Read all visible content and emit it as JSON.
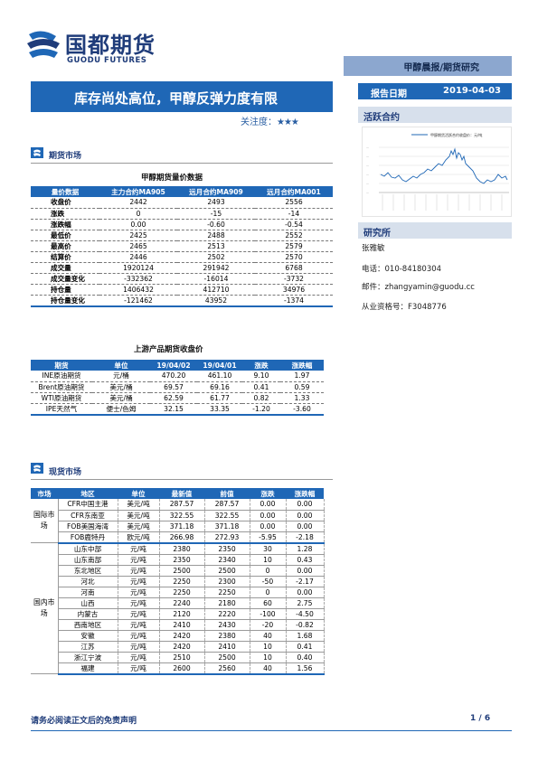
{
  "header": {
    "logo_cn": "国都期货",
    "logo_en": "GUODU FUTURES",
    "brand_band": "甲醇晨报/期货研究",
    "title": "库存尚处高位，甲醇反弹力度有限",
    "attention_label": "关注度：",
    "attention_stars": "★★★",
    "date_label": "报告日期",
    "date_value": "2019-04-03"
  },
  "sidebar": {
    "active_contract_head": "活跃合约",
    "chart_legend": "甲醇期货活跃合约收盘价：元/吨",
    "research_head": "研究所",
    "analyst": "张雅敏",
    "phone": "电话：010-84180304",
    "email": "邮件：zhangyamin@guodu.cc",
    "license": "从业资格号：F3048776"
  },
  "sections": {
    "futures": "期货市场",
    "spot": "现货市场"
  },
  "futures_table": {
    "caption": "甲醇期货量价数据",
    "headers": [
      "量价数据",
      "主力合约MA905",
      "远月合约MA909",
      "远月合约MA001"
    ],
    "rows": [
      [
        "收盘价",
        "2442",
        "2493",
        "2556"
      ],
      [
        "涨跌",
        "0",
        "-15",
        "-14"
      ],
      [
        "涨跌幅",
        "0.00",
        "-0.60",
        "-0.54"
      ],
      [
        "最低价",
        "2425",
        "2488",
        "2552"
      ],
      [
        "最高价",
        "2465",
        "2513",
        "2579"
      ],
      [
        "结算价",
        "2446",
        "2502",
        "2570"
      ],
      [
        "成交量",
        "1920124",
        "291942",
        "6768"
      ],
      [
        "成交量变化",
        "-332362",
        "-16014",
        "-3732"
      ],
      [
        "持仓量",
        "1406432",
        "412710",
        "34976"
      ],
      [
        "持仓量变化",
        "-121462",
        "43952",
        "-1374"
      ]
    ]
  },
  "upstream_table": {
    "caption": "上游产品期货收盘价",
    "headers": [
      "期货",
      "单位",
      "19/04/02",
      "19/04/01",
      "涨跌",
      "涨跌幅"
    ],
    "rows": [
      [
        "INE原油期货",
        "元/桶",
        "470.20",
        "461.10",
        "9.10",
        "1.97"
      ],
      [
        "Brent原油期货",
        "美元/桶",
        "69.57",
        "69.16",
        "0.41",
        "0.59"
      ],
      [
        "WTI原油期货",
        "美元/桶",
        "62.59",
        "61.77",
        "0.82",
        "1.33"
      ],
      [
        "IPE天然气",
        "便士/色姆",
        "32.15",
        "33.35",
        "-1.20",
        "-3.60"
      ]
    ]
  },
  "spot_table": {
    "headers": [
      "市场",
      "地区",
      "单位",
      "最新值",
      "前值",
      "涨跌",
      "涨跌幅"
    ],
    "intl_label": "国际市场",
    "dom_label": "国内市场",
    "intl_rows": [
      [
        "CFR中国主港",
        "美元/吨",
        "287.57",
        "287.57",
        "0.00",
        "0.00"
      ],
      [
        "CFR东南亚",
        "美元/吨",
        "322.55",
        "322.55",
        "0.00",
        "0.00"
      ],
      [
        "FOB美国海湾",
        "美元/吨",
        "371.18",
        "371.18",
        "0.00",
        "0.00"
      ],
      [
        "FOB鹿特丹",
        "欧元/吨",
        "266.98",
        "272.93",
        "-5.95",
        "-2.18"
      ]
    ],
    "dom_rows": [
      [
        "山东中部",
        "元/吨",
        "2380",
        "2350",
        "30",
        "1.28"
      ],
      [
        "山东南部",
        "元/吨",
        "2350",
        "2340",
        "10",
        "0.43"
      ],
      [
        "东北地区",
        "元/吨",
        "2500",
        "2500",
        "0",
        "0.00"
      ],
      [
        "河北",
        "元/吨",
        "2250",
        "2300",
        "-50",
        "-2.17"
      ],
      [
        "河南",
        "元/吨",
        "2250",
        "2250",
        "0",
        "0.00"
      ],
      [
        "山西",
        "元/吨",
        "2240",
        "2180",
        "60",
        "2.75"
      ],
      [
        "内蒙古",
        "元/吨",
        "2120",
        "2220",
        "-100",
        "-4.50"
      ],
      [
        "西南地区",
        "元/吨",
        "2410",
        "2430",
        "-20",
        "-0.82"
      ],
      [
        "安徽",
        "元/吨",
        "2420",
        "2380",
        "40",
        "1.68"
      ],
      [
        "江苏",
        "元/吨",
        "2420",
        "2410",
        "10",
        "0.41"
      ],
      [
        "浙江宁波",
        "元/吨",
        "2510",
        "2500",
        "10",
        "0.40"
      ],
      [
        "福建",
        "元/吨",
        "2600",
        "2560",
        "40",
        "1.56"
      ]
    ]
  },
  "footer": {
    "disclaimer": "请务必阅读正文后的免责声明",
    "page": "1 / 6"
  },
  "colors": {
    "primary": "#1f67b6",
    "band": "#8ca7cf",
    "dark": "#1f3c7a"
  }
}
